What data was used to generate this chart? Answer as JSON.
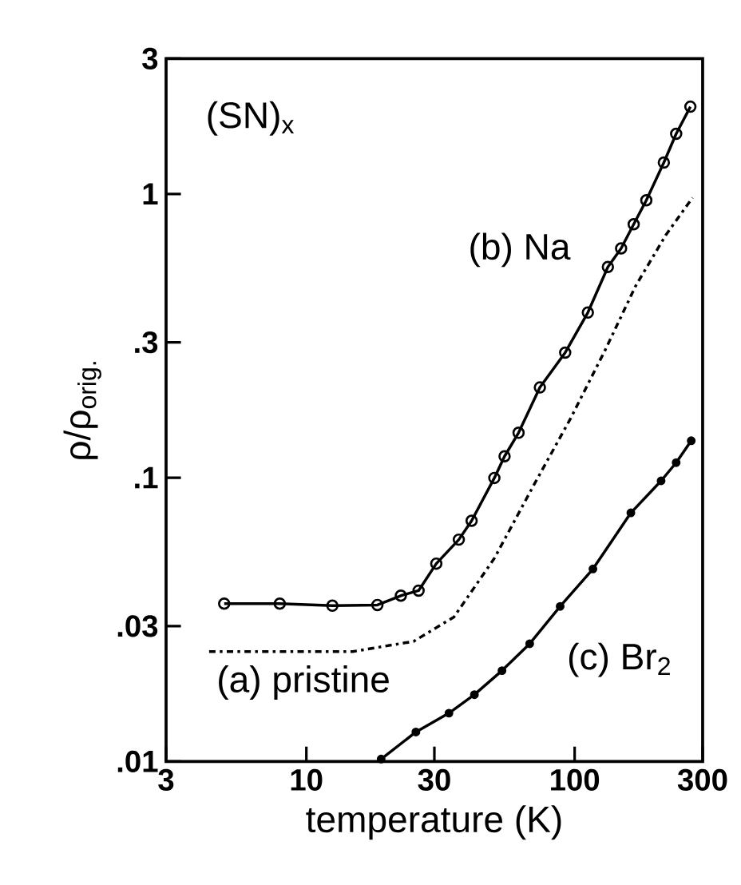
{
  "chart_data": {
    "type": "line",
    "xlabel": "temperature (K)",
    "ylabel": "ρ/ρ$_{orig.}$",
    "annotations": [
      "(SN)$_{x}$"
    ],
    "log": "xy",
    "xlim": [
      3,
      300
    ],
    "ylim": [
      0.01,
      3
    ],
    "xticks": [
      3,
      10,
      30,
      100,
      300
    ],
    "yticks": [
      {
        "value": 0.01,
        "label": ".01"
      },
      {
        "value": 0.03,
        "label": ".03"
      },
      {
        "value": 0.1,
        "label": ".1"
      },
      {
        "value": 0.3,
        "label": ".3"
      },
      1,
      3
    ],
    "grid": false,
    "legend": false,
    "series": [
      {
        "name": "(b) Na",
        "color": "#000000",
        "marker": "circle",
        "line_style": "solid",
        "x": [
          4.94,
          7.96,
          12.5,
          18.4,
          22.5,
          26.2,
          30.5,
          37,
          41.3,
          50.2,
          54.8,
          61.8,
          74.2,
          92.2,
          112,
          133,
          149,
          166,
          185,
          215,
          239,
          270
        ],
        "values": [
          0.036,
          0.036,
          0.0354,
          0.0356,
          0.0384,
          0.04,
          0.0498,
          0.0605,
          0.0705,
          0.0998,
          0.119,
          0.144,
          0.208,
          0.276,
          0.382,
          0.553,
          0.643,
          0.782,
          0.95,
          1.29,
          1.63,
          2.03
        ]
      },
      {
        "name": "(a) pristine",
        "color": "#000000",
        "marker": "none",
        "line_style": "dashdot",
        "x": [
          4.34,
          14.9,
          25.1,
          35.5,
          50.2,
          71,
          96.3,
          130,
          169,
          219,
          275
        ],
        "values": [
          0.0244,
          0.0244,
          0.0265,
          0.0323,
          0.052,
          0.0955,
          0.161,
          0.282,
          0.475,
          0.718,
          0.97
        ]
      },
      {
        "name": "(c) Br$_{2}$",
        "color": "#000000",
        "marker": "dot",
        "line_style": "solid",
        "x": [
          19.0,
          25.6,
          34,
          42.3,
          53.6,
          68,
          88.3,
          117,
          162,
          210,
          239,
          272
        ],
        "values": [
          0.0102,
          0.0127,
          0.0148,
          0.0172,
          0.0209,
          0.026,
          0.0352,
          0.0477,
          0.0752,
          0.0975,
          0.113,
          0.135
        ]
      }
    ]
  }
}
